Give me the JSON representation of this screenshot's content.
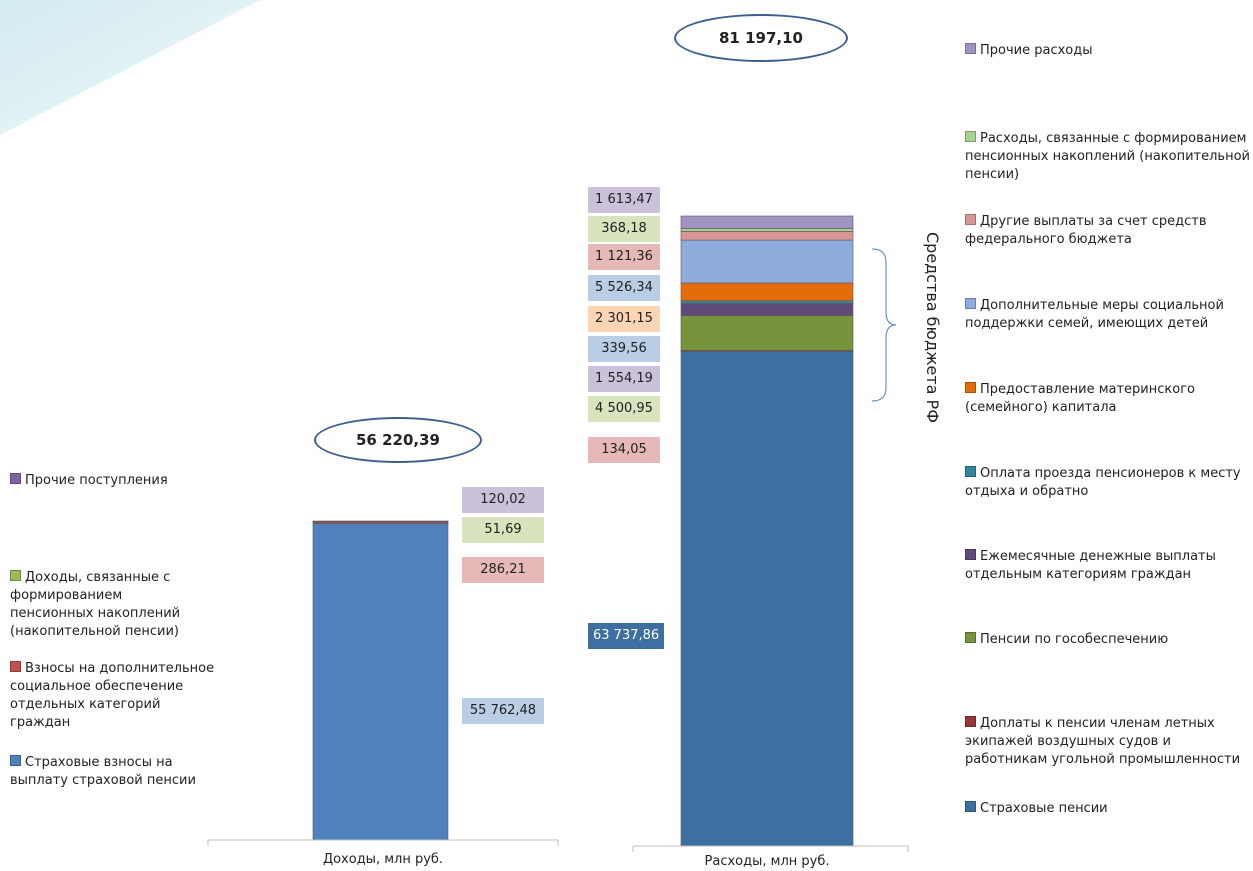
{
  "chart_data": {
    "type": "bar",
    "stacked": true,
    "categories": [
      "Доходы, млн руб.",
      "Расходы, млн руб."
    ],
    "totals": [
      "56 220,39",
      "81 197,10"
    ],
    "bracket_label": "Средства бюджета РФ",
    "charts": [
      {
        "xlabel": "Доходы, млн руб.",
        "total_label": "56 220,39",
        "series": [
          {
            "name": "Страховые взносы на выплату страховой пенсии",
            "value": 55762.48,
            "label": "55 762,48",
            "color": "#4f81bd",
            "label_bg": "#b9cde5"
          },
          {
            "name": "Взносы на дополнительное социальное обеспечение отдельных категорий граждан",
            "value": 286.21,
            "label": "286,21",
            "color": "#c0504d",
            "label_bg": "#e6b9b8"
          },
          {
            "name": "Доходы, связанные с формированием пенсионных накоплений (накопительной пенсии)",
            "value": 51.69,
            "label": "51,69",
            "color": "#9bbb59",
            "label_bg": "#d7e4bd"
          },
          {
            "name": "Прочие поступления",
            "value": 120.02,
            "label": "120,02",
            "color": "#8064a2",
            "label_bg": "#ccc1da"
          }
        ]
      },
      {
        "xlabel": "Расходы, млн руб.",
        "total_label": "81 197,10",
        "series": [
          {
            "name": "Страховые пенсии",
            "value": 63737.86,
            "label": "63 737,86",
            "color": "#3e6fa3",
            "label_bg": "#3e6fa3"
          },
          {
            "name": "Доплаты к пенсии членам летных экипажей воздушных судов и работникам угольной промышленности",
            "value": 134.05,
            "label": "134,05",
            "color": "#953735",
            "label_bg": "#e6b9b8"
          },
          {
            "name": "Пенсии по гособеспечению",
            "value": 4500.95,
            "label": "4 500,95",
            "color": "#77933c",
            "label_bg": "#d7e4bd"
          },
          {
            "name": "Ежемесячные денежные выплаты отдельным категориям граждан",
            "value": 1554.19,
            "label": "1 554,19",
            "color": "#604a7b",
            "label_bg": "#ccc1da"
          },
          {
            "name": "Оплата проезда пенсионеров к месту отдыха и обратно",
            "value": 339.56,
            "label": "339,56",
            "color": "#31859c",
            "label_bg": "#b9cde5"
          },
          {
            "name": "Предоставление материнского (семейного) капитала",
            "value": 2301.15,
            "label": "2 301,15",
            "color": "#e46c0a",
            "label_bg": "#fcd5b5"
          },
          {
            "name": "Дополнительные меры социальной поддержки семей, имеющих детей",
            "value": 5526.34,
            "label": "5 526,34",
            "color": "#8faadc",
            "label_bg": "#b9cde5"
          },
          {
            "name": "Другие выплаты за счет средств федерального бюджета",
            "value": 1121.36,
            "label": "1 121,36",
            "color": "#d99694",
            "label_bg": "#e6b9b8"
          },
          {
            "name": "Расходы, связанные с формированием пенсионных накоплений (накопительной пенсии)",
            "value": 368.18,
            "label": "368,18",
            "color": "#a9d18e",
            "label_bg": "#d7e4bd"
          },
          {
            "name": "Прочие расходы",
            "value": 1613.47,
            "label": "1 613,47",
            "color": "#a092c3",
            "label_bg": "#ccc1da"
          }
        ]
      }
    ]
  }
}
